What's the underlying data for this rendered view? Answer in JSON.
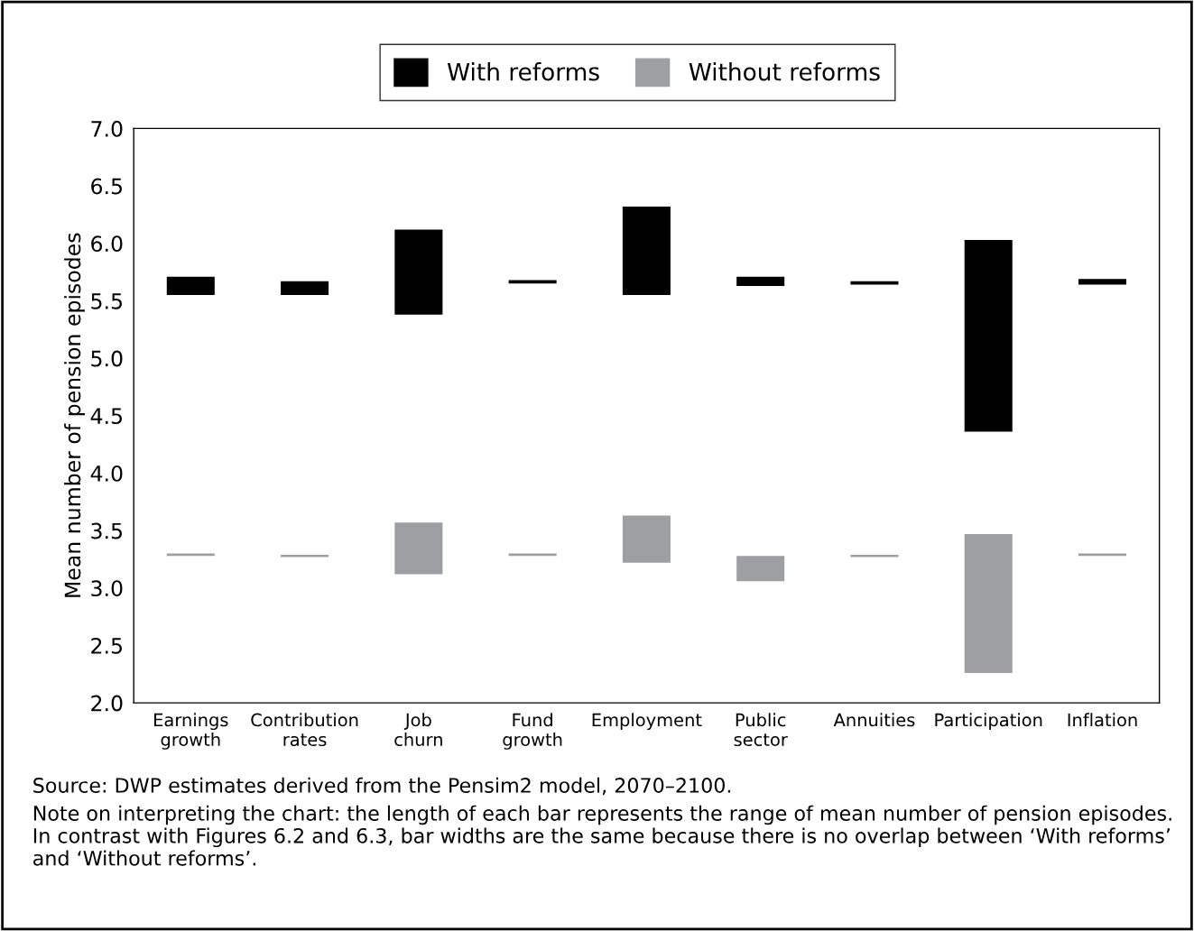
{
  "chart_data": {
    "type": "bar",
    "categories": [
      "Earnings\ngrowth",
      "Contribution\nrates",
      "Job\nchurn",
      "Fund\ngrowth",
      "Employment",
      "Public\nsector",
      "Annuities",
      "Participation",
      "Inflation"
    ],
    "series": [
      {
        "name": "With reforms",
        "color": "#000000",
        "base": [
          5.55,
          5.55,
          5.38,
          5.65,
          5.55,
          5.63,
          5.64,
          4.36,
          5.64
        ],
        "values": [
          0.16,
          0.12,
          0.74,
          0.03,
          0.77,
          0.08,
          0.03,
          1.67,
          0.05
        ]
      },
      {
        "name": "Without reforms",
        "color": "#9d9fa2",
        "base": [
          3.28,
          3.27,
          3.12,
          3.28,
          3.22,
          3.06,
          3.27,
          2.26,
          3.28
        ],
        "values": [
          0.02,
          0.02,
          0.45,
          0.02,
          0.41,
          0.22,
          0.02,
          1.21,
          0.02
        ]
      }
    ],
    "ylabel": "Mean number of pension episodes",
    "ylim": [
      2.0,
      7.0
    ],
    "yticks": [
      {
        "value": 2,
        "label": "2.0"
      },
      2.5,
      {
        "value": 3,
        "label": "3.0"
      },
      3.5,
      {
        "value": 4,
        "label": "4.0"
      },
      4.5,
      {
        "value": 5,
        "label": "5.0"
      },
      5.5,
      {
        "value": 6,
        "label": "6.0"
      },
      6.5,
      {
        "value": 7,
        "label": "7.0"
      }
    ],
    "grid": false,
    "legend": "top",
    "annotations": [
      "Source: DWP estimates derived from the Pensim2 model, 2070–2100.",
      "Note on interpreting the chart: the length of each bar represents the range of mean number of pension episodes. In contrast with Figures 6.2 and 6.3, bar widths are the same because there is no overlap between ‘With reforms’ and ‘Without reforms’."
    ]
  }
}
